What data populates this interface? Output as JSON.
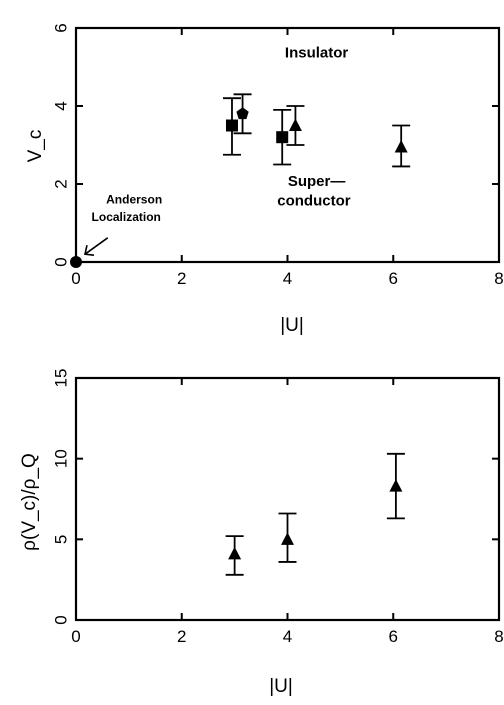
{
  "chart_data": [
    {
      "type": "scatter",
      "xlabel": "|U|",
      "ylabel": "V_c",
      "xlim": [
        0,
        8
      ],
      "ylim": [
        0,
        6
      ],
      "xticks": [
        0,
        2,
        4,
        6,
        8
      ],
      "yticks": [
        0,
        2,
        4,
        6
      ],
      "grid": false,
      "annotations": [
        "Insulator",
        "Super—",
        "conductor",
        "Anderson",
        "Localization"
      ],
      "series": [
        {
          "marker": "circle",
          "points": [
            {
              "x": 0,
              "y": 0
            }
          ]
        },
        {
          "marker": "square",
          "points": [
            {
              "x": 2.95,
              "y": 3.5,
              "ylow": 2.75,
              "yhigh": 4.2
            },
            {
              "x": 3.9,
              "y": 3.2,
              "ylow": 2.5,
              "yhigh": 3.9
            }
          ]
        },
        {
          "marker": "pentagon",
          "points": [
            {
              "x": 3.15,
              "y": 3.8,
              "ylow": 3.3,
              "yhigh": 4.3
            }
          ]
        },
        {
          "marker": "triangle",
          "points": [
            {
              "x": 4.15,
              "y": 3.5,
              "ylow": 3.0,
              "yhigh": 4.0
            },
            {
              "x": 6.15,
              "y": 2.95,
              "ylow": 2.45,
              "yhigh": 3.5
            }
          ]
        }
      ]
    },
    {
      "type": "scatter",
      "xlabel": "|U|",
      "ylabel": "ρ(V_c)/ρ_Q",
      "xlim": [
        0,
        8
      ],
      "ylim": [
        0,
        15
      ],
      "xticks": [
        0,
        2,
        4,
        6,
        8
      ],
      "yticks": [
        0,
        5,
        10,
        15
      ],
      "grid": false,
      "series": [
        {
          "marker": "triangle",
          "points": [
            {
              "x": 3.0,
              "y": 4.1,
              "ylow": 2.8,
              "yhigh": 5.2
            },
            {
              "x": 4.0,
              "y": 5.0,
              "ylow": 3.6,
              "yhigh": 6.6
            },
            {
              "x": 6.05,
              "y": 8.3,
              "ylow": 6.3,
              "yhigh": 10.3
            }
          ]
        }
      ]
    }
  ]
}
